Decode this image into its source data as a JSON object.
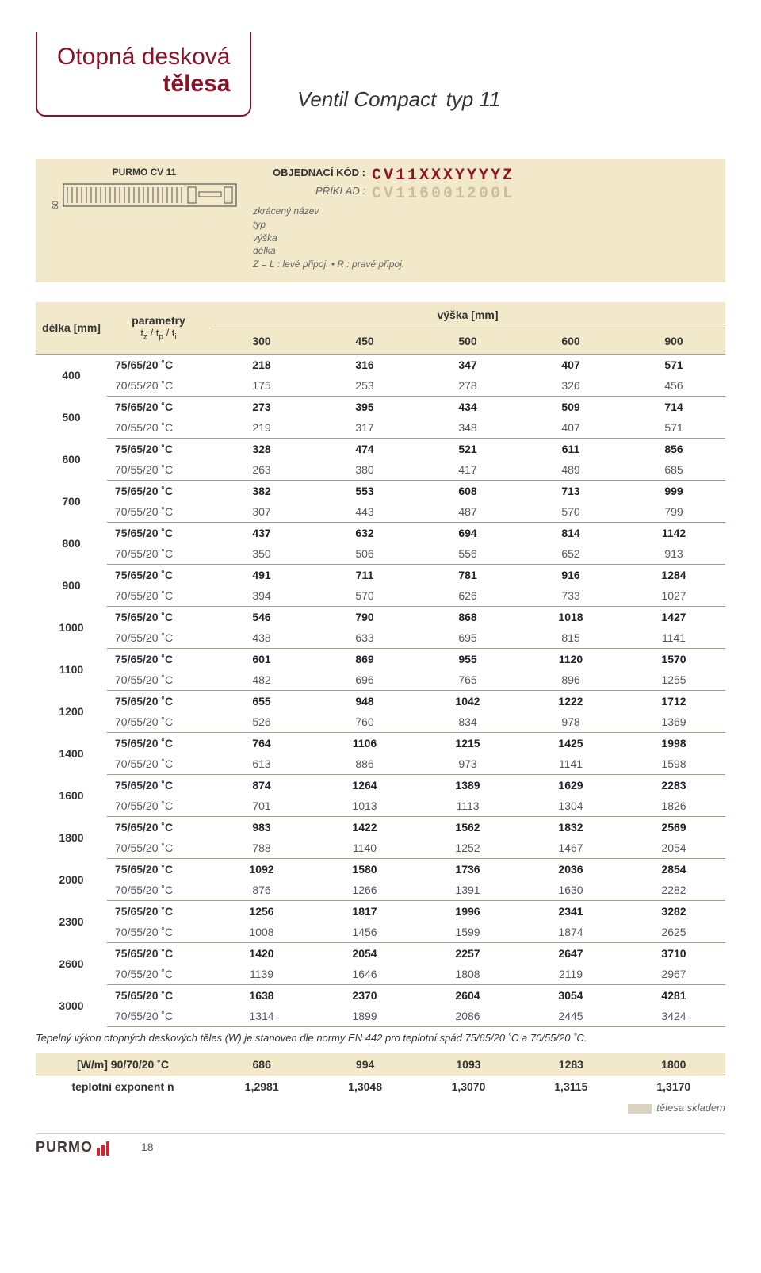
{
  "header": {
    "title_line1": "Otopná desková",
    "title_line2": "tělesa",
    "main_title": "Ventil Compact",
    "type_suffix": "typ 11"
  },
  "code_band": {
    "model_label": "PURMO CV 11",
    "height_label": "60",
    "order_code_label": "OBJEDNACÍ KÓD  :",
    "order_code_value": "CV11XXXYYYYZ",
    "example_label": "PŘÍKLAD  :",
    "example_value": "CV116001200L",
    "legend": {
      "l1": "zkrácený název",
      "l2": "typ",
      "l3": "výška",
      "l4": "délka",
      "l5": "Z = L : levé připoj.  •  R : pravé připoj."
    }
  },
  "table": {
    "col_length": "délka [mm]",
    "col_params_top": "parametry",
    "col_params_bot": "t_z / t_p / t_i",
    "col_height": "výška [mm]",
    "heights": [
      "300",
      "450",
      "500",
      "600",
      "900"
    ],
    "rows": [
      {
        "len": "400",
        "a": {
          "p": "75/65/20 ˚C",
          "v": [
            "218",
            "316",
            "347",
            "407",
            "571"
          ]
        },
        "b": {
          "p": "70/55/20 ˚C",
          "v": [
            "175",
            "253",
            "278",
            "326",
            "456"
          ]
        }
      },
      {
        "len": "500",
        "a": {
          "p": "75/65/20 ˚C",
          "v": [
            "273",
            "395",
            "434",
            "509",
            "714"
          ]
        },
        "b": {
          "p": "70/55/20 ˚C",
          "v": [
            "219",
            "317",
            "348",
            "407",
            "571"
          ]
        }
      },
      {
        "len": "600",
        "a": {
          "p": "75/65/20 ˚C",
          "v": [
            "328",
            "474",
            "521",
            "611",
            "856"
          ]
        },
        "b": {
          "p": "70/55/20 ˚C",
          "v": [
            "263",
            "380",
            "417",
            "489",
            "685"
          ]
        }
      },
      {
        "len": "700",
        "a": {
          "p": "75/65/20 ˚C",
          "v": [
            "382",
            "553",
            "608",
            "713",
            "999"
          ]
        },
        "b": {
          "p": "70/55/20 ˚C",
          "v": [
            "307",
            "443",
            "487",
            "570",
            "799"
          ]
        }
      },
      {
        "len": "800",
        "a": {
          "p": "75/65/20 ˚C",
          "v": [
            "437",
            "632",
            "694",
            "814",
            "1142"
          ]
        },
        "b": {
          "p": "70/55/20 ˚C",
          "v": [
            "350",
            "506",
            "556",
            "652",
            "913"
          ]
        }
      },
      {
        "len": "900",
        "a": {
          "p": "75/65/20 ˚C",
          "v": [
            "491",
            "711",
            "781",
            "916",
            "1284"
          ]
        },
        "b": {
          "p": "70/55/20 ˚C",
          "v": [
            "394",
            "570",
            "626",
            "733",
            "1027"
          ]
        }
      },
      {
        "len": "1000",
        "a": {
          "p": "75/65/20 ˚C",
          "v": [
            "546",
            "790",
            "868",
            "1018",
            "1427"
          ]
        },
        "b": {
          "p": "70/55/20 ˚C",
          "v": [
            "438",
            "633",
            "695",
            "815",
            "1141"
          ]
        }
      },
      {
        "len": "1100",
        "a": {
          "p": "75/65/20 ˚C",
          "v": [
            "601",
            "869",
            "955",
            "1120",
            "1570"
          ]
        },
        "b": {
          "p": "70/55/20 ˚C",
          "v": [
            "482",
            "696",
            "765",
            "896",
            "1255"
          ]
        }
      },
      {
        "len": "1200",
        "a": {
          "p": "75/65/20 ˚C",
          "v": [
            "655",
            "948",
            "1042",
            "1222",
            "1712"
          ]
        },
        "b": {
          "p": "70/55/20 ˚C",
          "v": [
            "526",
            "760",
            "834",
            "978",
            "1369"
          ]
        }
      },
      {
        "len": "1400",
        "a": {
          "p": "75/65/20 ˚C",
          "v": [
            "764",
            "1106",
            "1215",
            "1425",
            "1998"
          ]
        },
        "b": {
          "p": "70/55/20 ˚C",
          "v": [
            "613",
            "886",
            "973",
            "1141",
            "1598"
          ]
        }
      },
      {
        "len": "1600",
        "a": {
          "p": "75/65/20 ˚C",
          "v": [
            "874",
            "1264",
            "1389",
            "1629",
            "2283"
          ]
        },
        "b": {
          "p": "70/55/20 ˚C",
          "v": [
            "701",
            "1013",
            "1113",
            "1304",
            "1826"
          ]
        }
      },
      {
        "len": "1800",
        "a": {
          "p": "75/65/20 ˚C",
          "v": [
            "983",
            "1422",
            "1562",
            "1832",
            "2569"
          ]
        },
        "b": {
          "p": "70/55/20 ˚C",
          "v": [
            "788",
            "1140",
            "1252",
            "1467",
            "2054"
          ]
        }
      },
      {
        "len": "2000",
        "a": {
          "p": "75/65/20 ˚C",
          "v": [
            "1092",
            "1580",
            "1736",
            "2036",
            "2854"
          ]
        },
        "b": {
          "p": "70/55/20 ˚C",
          "v": [
            "876",
            "1266",
            "1391",
            "1630",
            "2282"
          ]
        }
      },
      {
        "len": "2300",
        "a": {
          "p": "75/65/20 ˚C",
          "v": [
            "1256",
            "1817",
            "1996",
            "2341",
            "3282"
          ]
        },
        "b": {
          "p": "70/55/20 ˚C",
          "v": [
            "1008",
            "1456",
            "1599",
            "1874",
            "2625"
          ]
        }
      },
      {
        "len": "2600",
        "a": {
          "p": "75/65/20 ˚C",
          "v": [
            "1420",
            "2054",
            "2257",
            "2647",
            "3710"
          ]
        },
        "b": {
          "p": "70/55/20 ˚C",
          "v": [
            "1139",
            "1646",
            "1808",
            "2119",
            "2967"
          ]
        }
      },
      {
        "len": "3000",
        "a": {
          "p": "75/65/20 ˚C",
          "v": [
            "1638",
            "2370",
            "2604",
            "3054",
            "4281"
          ]
        },
        "b": {
          "p": "70/55/20 ˚C",
          "v": [
            "1314",
            "1899",
            "2086",
            "2445",
            "3424"
          ]
        }
      }
    ]
  },
  "formula": "Tepelný výkon otopných deskových těles (W) je stanoven dle normy EN 442 pro teplotní spád 75/65/20 ˚C a 70/55/20 ˚C.",
  "bottom": {
    "row1_label": "[W/m] 90/70/20 ˚C",
    "row1_vals": [
      "686",
      "994",
      "1093",
      "1283",
      "1800"
    ],
    "row2_label": "teplotní exponent n",
    "row2_vals": [
      "1,2981",
      "1,3048",
      "1,3070",
      "1,3115",
      "1,3170"
    ]
  },
  "stock_note": "tělesa skladem",
  "footer": {
    "logo": "PURMO",
    "page": "18"
  },
  "colors": {
    "maroon": "#8c1228",
    "cream": "#f2e9ca",
    "border": "#a9a089",
    "red": "#d2232a"
  }
}
